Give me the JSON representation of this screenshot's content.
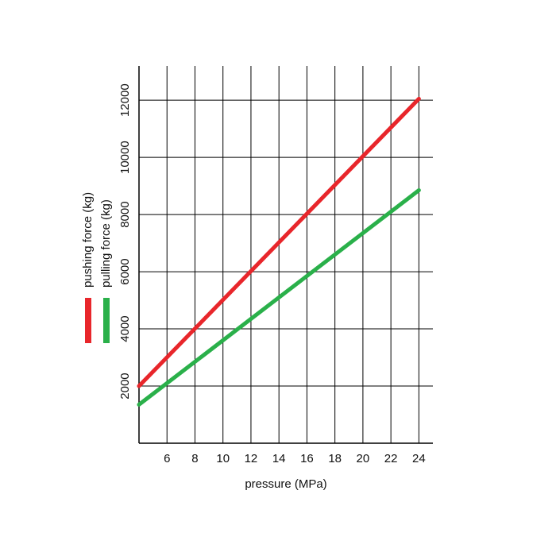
{
  "chart_data": {
    "type": "line",
    "x_label": "pressure (MPa)",
    "x": [
      4,
      24
    ],
    "series": [
      {
        "name": "pushing force (kg)",
        "color": "#e8262b",
        "values": [
          2000,
          12050
        ]
      },
      {
        "name": "pulling force (kg)",
        "color": "#2ab04a",
        "values": [
          1350,
          8850
        ]
      }
    ],
    "xlim": [
      4,
      25
    ],
    "xticks": [
      6,
      8,
      10,
      12,
      14,
      16,
      18,
      20,
      22,
      24
    ],
    "ylim": [
      0,
      13200
    ],
    "yticks": [
      2000,
      4000,
      6000,
      8000,
      10000,
      12000
    ],
    "grid": true,
    "legend": "left"
  }
}
